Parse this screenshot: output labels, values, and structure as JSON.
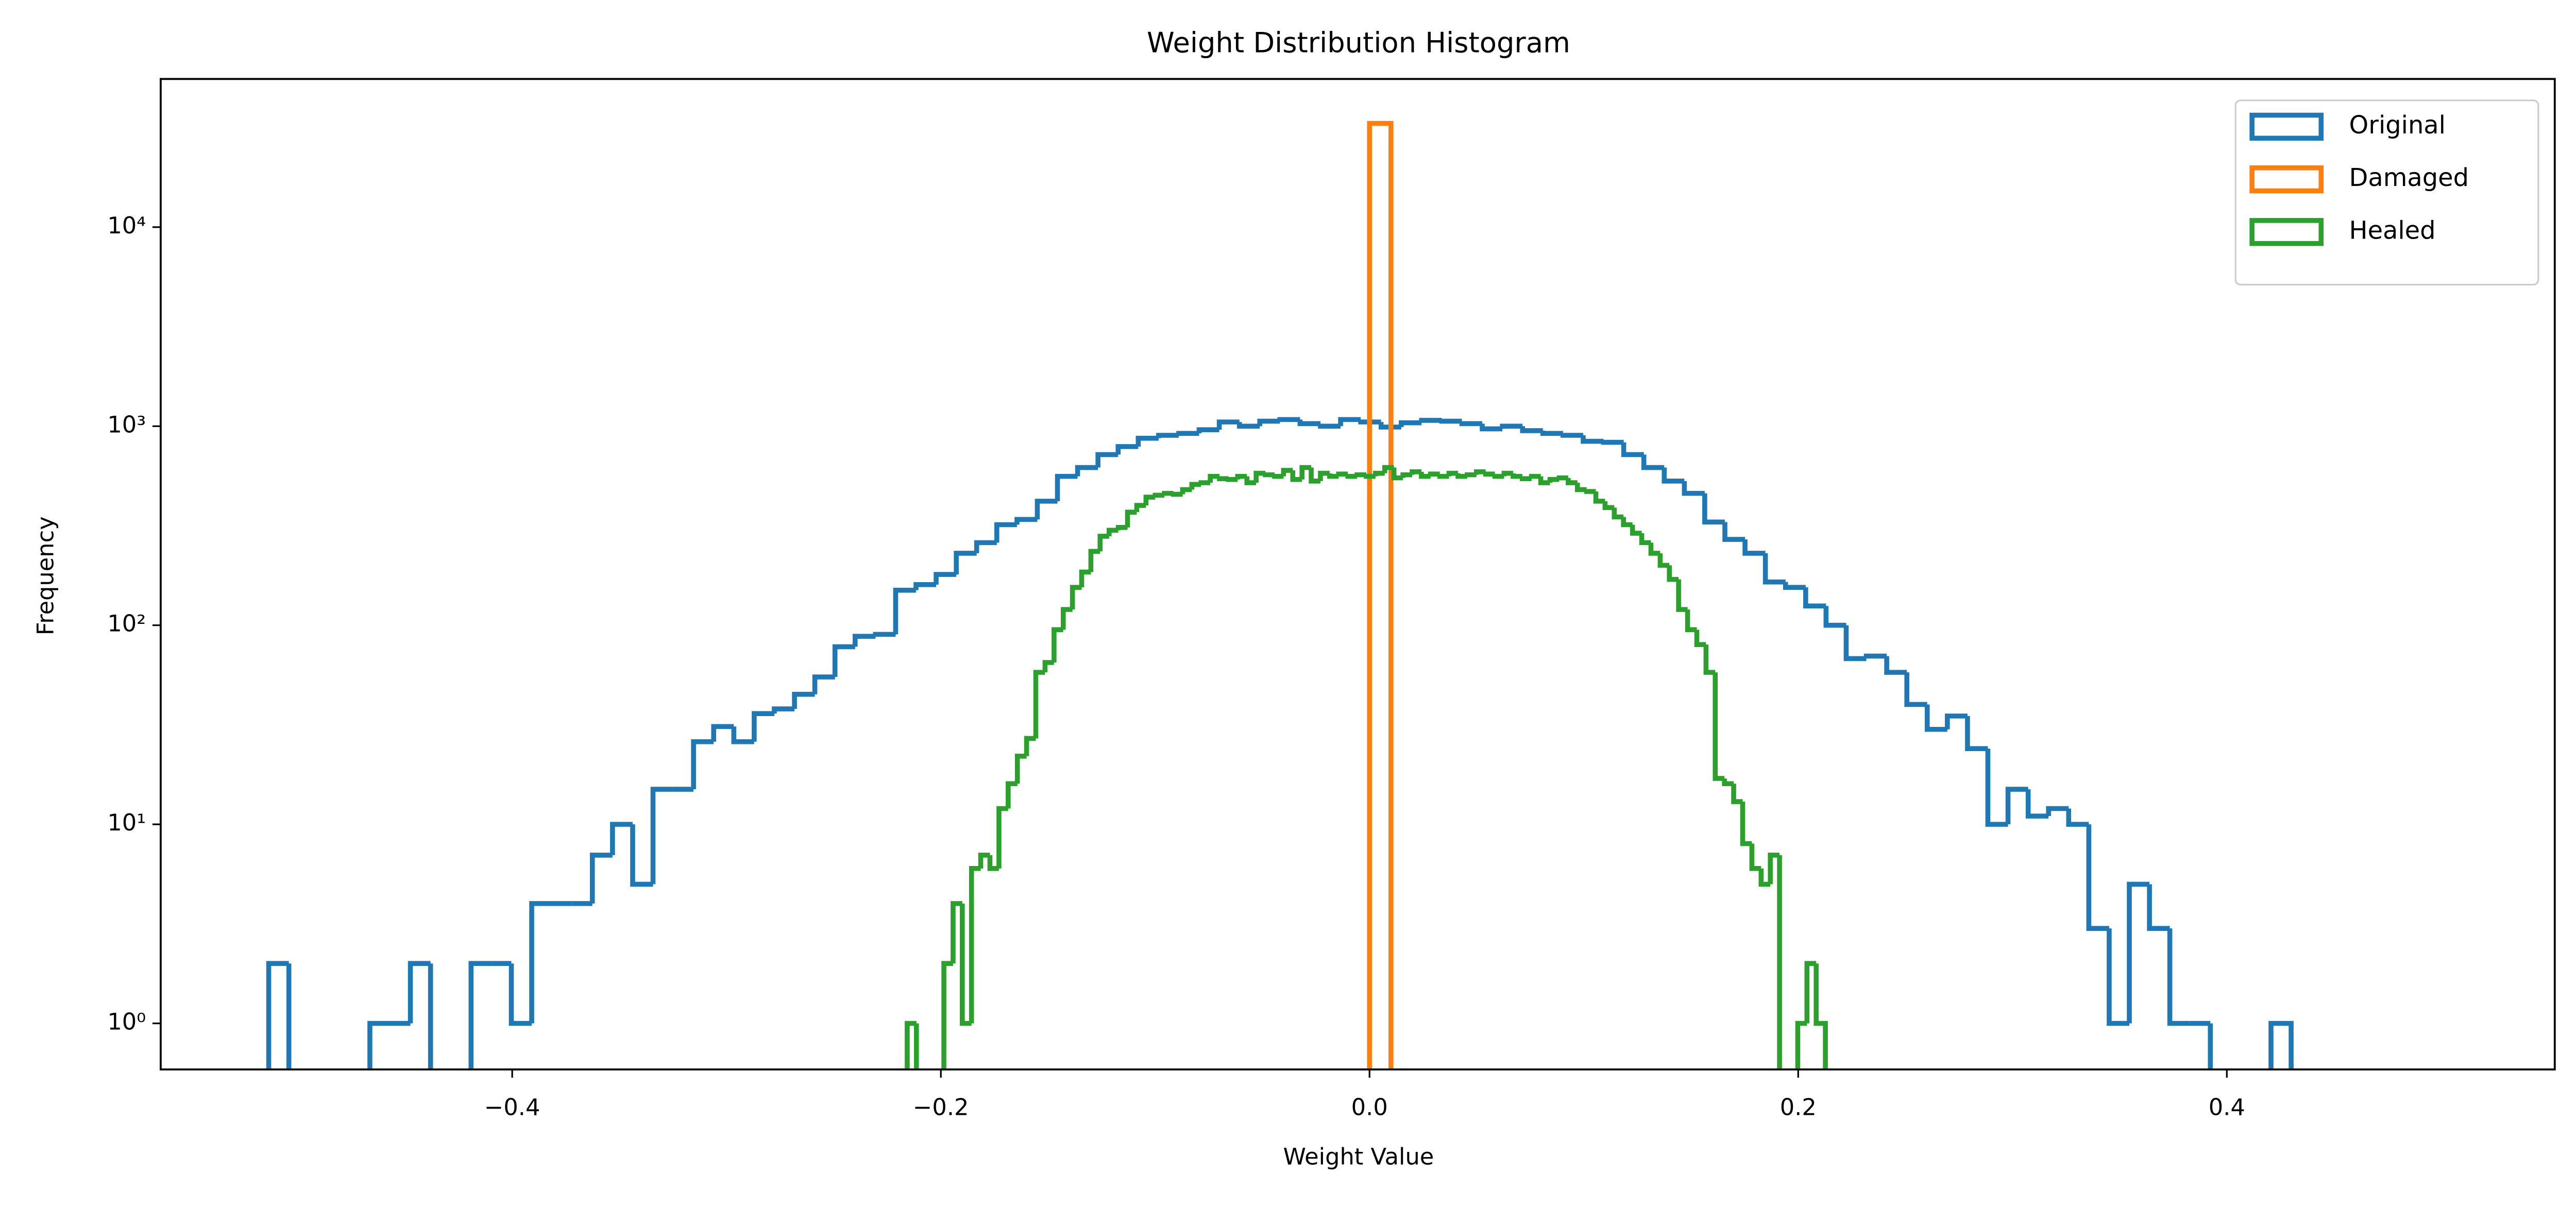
{
  "chart_data": {
    "type": "histogram",
    "title": "Weight Distribution Histogram",
    "x_label": "Weight Value",
    "y_label": "Frequency",
    "y_scale": "log",
    "legend": "upper right",
    "xlim": [
      -0.564,
      0.553
    ],
    "ylim": [
      0.587,
      55500
    ],
    "xticks": [
      {
        "value": -0.4,
        "label": "−0.4"
      },
      {
        "value": -0.2,
        "label": "−0.2"
      },
      {
        "value": 0,
        "label": "0.0"
      },
      0.2,
      0.4
    ],
    "yticks": [
      {
        "value": 1,
        "label": "10⁰"
      },
      {
        "value": 10,
        "label": "10¹"
      },
      {
        "value": 100,
        "label": "10²"
      },
      {
        "value": 1000,
        "label": "10³"
      },
      {
        "value": 10000,
        "label": "10⁴"
      }
    ],
    "series": [
      {
        "name": "Original",
        "color": "#1f77b4",
        "bins": [
          -0.5136,
          -0.5042,
          -0.4947,
          -0.4853,
          -0.4759,
          -0.4664,
          -0.457,
          -0.4475,
          -0.4381,
          -0.4287,
          -0.4192,
          -0.4098,
          -0.4004,
          -0.3909,
          -0.3815,
          -0.3721,
          -0.3626,
          -0.3532,
          -0.3438,
          -0.3343,
          -0.3249,
          -0.3154,
          -0.306,
          -0.2966,
          -0.2871,
          -0.2777,
          -0.2683,
          -0.2588,
          -0.2494,
          -0.24,
          -0.2305,
          -0.2211,
          -0.2116,
          -0.2022,
          -0.1928,
          -0.1833,
          -0.1739,
          -0.1645,
          -0.155,
          -0.1456,
          -0.1362,
          -0.1267,
          -0.1173,
          -0.1079,
          -0.0984,
          -0.089,
          -0.0795,
          -0.0701,
          -0.0607,
          -0.0512,
          -0.0418,
          -0.0324,
          -0.0229,
          -0.0135,
          -0.0041,
          0.0054,
          0.0148,
          0.0243,
          0.0337,
          0.0431,
          0.0526,
          0.062,
          0.0714,
          0.0809,
          0.0903,
          0.0997,
          0.1092,
          0.1186,
          0.128,
          0.1375,
          0.1469,
          0.1564,
          0.1658,
          0.1752,
          0.1847,
          0.1941,
          0.2035,
          0.213,
          0.2224,
          0.2318,
          0.2413,
          0.2507,
          0.2602,
          0.2696,
          0.279,
          0.2885,
          0.2979,
          0.3073,
          0.3168,
          0.3262,
          0.3356,
          0.3451,
          0.3545,
          0.3639,
          0.3734,
          0.3828,
          0.3923,
          0.4017,
          0.4111,
          0.4206,
          0.43
        ],
        "values": [
          2,
          0,
          0,
          0,
          0,
          1,
          1,
          2,
          0,
          0,
          2,
          2,
          1,
          4,
          4,
          4,
          7,
          10,
          5,
          15,
          15,
          26,
          31,
          26,
          36,
          38,
          45,
          55,
          78,
          88,
          90,
          150,
          160,
          180,
          230,
          260,
          320,
          340,
          420,
          560,
          620,
          720,
          790,
          870,
          900,
          920,
          960,
          1050,
          1000,
          1060,
          1080,
          1030,
          1000,
          1080,
          1050,
          990,
          1040,
          1070,
          1060,
          1030,
          970,
          1000,
          950,
          920,
          900,
          840,
          830,
          720,
          620,
          530,
          460,
          330,
          270,
          230,
          165,
          155,
          125,
          100,
          68,
          70,
          58,
          40,
          30,
          35,
          24,
          10,
          15,
          11,
          12,
          10,
          3,
          1,
          5,
          3,
          1,
          1,
          0,
          0,
          0,
          1
        ]
      },
      {
        "name": "Damaged",
        "color": "#ff7f0e",
        "bins": [
          0,
          0.01
        ],
        "values": [
          33200
        ]
      },
      {
        "name": "Healed",
        "color": "#2ca02c",
        "bins": [
          -0.2157,
          -0.2114,
          -0.2071,
          -0.2028,
          -0.1986,
          -0.1943,
          -0.19,
          -0.1857,
          -0.1814,
          -0.1771,
          -0.1729,
          -0.1686,
          -0.1643,
          -0.16,
          -0.1557,
          -0.1514,
          -0.1472,
          -0.1429,
          -0.1386,
          -0.1343,
          -0.13,
          -0.1257,
          -0.1215,
          -0.1172,
          -0.1129,
          -0.1086,
          -0.1043,
          -0.1,
          -0.0957,
          -0.0915,
          -0.0872,
          -0.0829,
          -0.0786,
          -0.0743,
          -0.07,
          -0.0658,
          -0.0615,
          -0.0572,
          -0.0529,
          -0.0486,
          -0.0443,
          -0.0401,
          -0.0358,
          -0.0315,
          -0.0272,
          -0.0229,
          -0.0186,
          -0.0144,
          -0.0101,
          -0.0058,
          -0.0015,
          0.0028,
          0.0071,
          0.0114,
          0.0156,
          0.0199,
          0.0242,
          0.0285,
          0.0328,
          0.0371,
          0.0413,
          0.0456,
          0.0499,
          0.0542,
          0.0585,
          0.0628,
          0.067,
          0.0713,
          0.0756,
          0.0799,
          0.0842,
          0.0885,
          0.0927,
          0.097,
          0.1013,
          0.1056,
          0.1099,
          0.1142,
          0.1185,
          0.1227,
          0.127,
          0.1313,
          0.1356,
          0.1399,
          0.1442,
          0.1484,
          0.1527,
          0.157,
          0.1613,
          0.1656,
          0.1699,
          0.1741,
          0.1784,
          0.1827,
          0.187,
          0.1913,
          0.1956,
          0.1998,
          0.2041,
          0.2084,
          0.2127
        ],
        "values": [
          1,
          0,
          0,
          0,
          2,
          4,
          1,
          6,
          7,
          6,
          12,
          16,
          22,
          27,
          58,
          65,
          95,
          120,
          155,
          185,
          235,
          280,
          300,
          310,
          370,
          400,
          440,
          450,
          460,
          455,
          480,
          510,
          520,
          560,
          545,
          540,
          560,
          520,
          580,
          570,
          560,
          600,
          540,
          620,
          530,
          580,
          560,
          575,
          560,
          570,
          560,
          580,
          620,
          550,
          570,
          590,
          560,
          575,
          560,
          580,
          560,
          570,
          590,
          575,
          560,
          580,
          560,
          545,
          560,
          520,
          540,
          550,
          520,
          480,
          470,
          420,
          390,
          350,
          320,
          290,
          260,
          230,
          200,
          170,
          120,
          95,
          80,
          58,
          17,
          16,
          13,
          8,
          6,
          5,
          7,
          0,
          0,
          1,
          2,
          1
        ]
      }
    ]
  }
}
